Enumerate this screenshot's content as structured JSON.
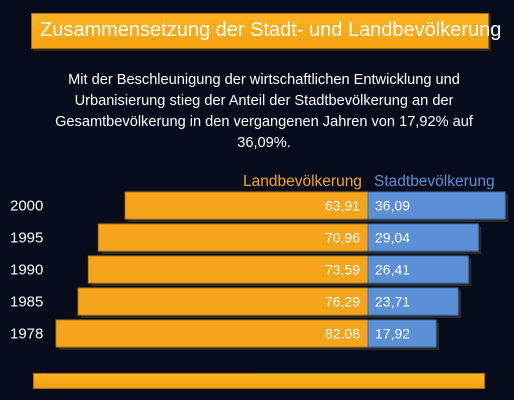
{
  "title": "Zusammensetzung der Stadt- und Landbevölkerung",
  "description": "Mit der Beschleunigung der wirtschaftlichen Entwicklung und Urbanisierung stieg der Anteil der Stadtbevölkerung an der Gesamtbevölkerung in den vergangenen Jahren von 17,92% auf 36,09%.",
  "colors": {
    "land": "#f5a41c",
    "stadt": "#5b8fd6",
    "accent": "#ffb221",
    "background": "#060c1c"
  },
  "chart_data": {
    "type": "bar",
    "orientation": "horizontal-stacked",
    "categories": [
      "2000",
      "1995",
      "1990",
      "1985",
      "1978"
    ],
    "series": [
      {
        "name": "Landbevölkerung",
        "values": [
          63.91,
          70.96,
          73.59,
          76.29,
          82.08
        ],
        "labels": [
          "63,91",
          "70,96",
          "73,59",
          "76,29",
          "82,08"
        ]
      },
      {
        "name": "Stadtbevölkerung",
        "values": [
          36.09,
          29.04,
          26.41,
          23.71,
          17.92
        ],
        "labels": [
          "36,09",
          "29,04",
          "26,41",
          "23,71",
          "17,92"
        ]
      }
    ]
  }
}
